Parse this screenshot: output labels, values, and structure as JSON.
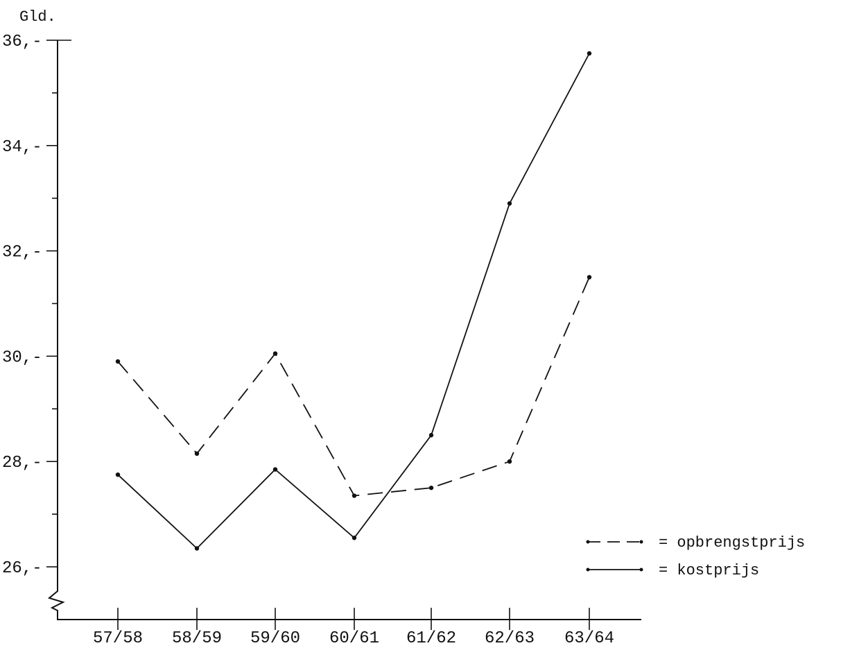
{
  "chart_data": {
    "type": "line",
    "title": "",
    "ylabel": "Gld.",
    "xlabel": "",
    "categories": [
      "57/58",
      "58/59",
      "59/60",
      "60/61",
      "61/62",
      "62/63",
      "63/64"
    ],
    "y_ticks": [
      26,
      28,
      30,
      32,
      34,
      36
    ],
    "y_tick_labels": [
      "26,-",
      "28,-",
      "30,-",
      "32,-",
      "34,-",
      "36,-"
    ],
    "ylim": [
      25,
      36
    ],
    "axis_break": true,
    "grid": false,
    "legend_position": "right",
    "series": [
      {
        "name": "= opbrengstprijs",
        "style": "dashed",
        "values": [
          29.9,
          28.15,
          30.05,
          27.35,
          27.5,
          28.0,
          31.5
        ]
      },
      {
        "name": "= kostprijs",
        "style": "solid",
        "values": [
          27.75,
          26.35,
          27.85,
          26.55,
          28.5,
          32.9,
          35.75
        ]
      }
    ],
    "colors": {
      "ink": "#111111",
      "background": "#ffffff"
    }
  }
}
